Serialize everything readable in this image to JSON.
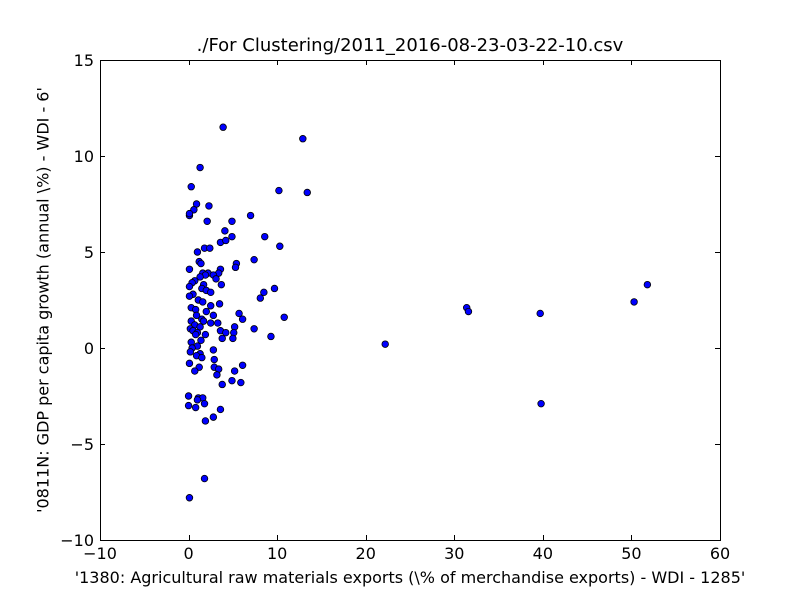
{
  "chart_data": {
    "type": "scatter",
    "title": "./For Clustering/2011_2016-08-23-03-22-10.csv",
    "xlabel": "'1380: Agricultural raw materials exports  (\\% of merchandise exports) - WDI - 1285'",
    "ylabel": "'0811N: GDP per capita growth  (annual \\%) - WDI - 6'",
    "xlim": [
      -10,
      60
    ],
    "ylim": [
      -10,
      15
    ],
    "xticks": [
      -10,
      0,
      10,
      20,
      30,
      40,
      50,
      60
    ],
    "yticks": [
      -10,
      -5,
      0,
      5,
      10,
      15
    ],
    "xtick_labels": [
      "−10",
      "0",
      "10",
      "20",
      "30",
      "40",
      "50",
      "60"
    ],
    "ytick_labels": [
      "−10",
      "−5",
      "0",
      "5",
      "10",
      "15"
    ],
    "grid": false,
    "marker_color": "#0000ff",
    "marker_edge": "#000000",
    "points": [
      [
        3.9,
        11.5
      ],
      [
        12.9,
        10.9
      ],
      [
        1.3,
        9.4
      ],
      [
        0.3,
        8.4
      ],
      [
        10.2,
        8.2
      ],
      [
        13.4,
        8.1
      ],
      [
        0.9,
        7.5
      ],
      [
        2.3,
        7.4
      ],
      [
        0.6,
        7.2
      ],
      [
        0.1,
        6.9
      ],
      [
        0.1,
        7.0
      ],
      [
        7.0,
        6.9
      ],
      [
        2.1,
        6.6
      ],
      [
        4.9,
        6.6
      ],
      [
        4.1,
        6.1
      ],
      [
        8.6,
        5.8
      ],
      [
        4.9,
        5.8
      ],
      [
        3.6,
        5.5
      ],
      [
        4.2,
        5.6
      ],
      [
        10.3,
        5.3
      ],
      [
        1.8,
        5.2
      ],
      [
        2.4,
        5.2
      ],
      [
        1.0,
        5.0
      ],
      [
        7.4,
        4.6
      ],
      [
        1.2,
        4.5
      ],
      [
        1.4,
        4.4
      ],
      [
        5.4,
        4.4
      ],
      [
        5.3,
        4.2
      ],
      [
        0.1,
        4.1
      ],
      [
        3.6,
        4.1
      ],
      [
        3.4,
        3.9
      ],
      [
        1.6,
        3.9
      ],
      [
        2.2,
        3.9
      ],
      [
        1.9,
        3.8
      ],
      [
        2.8,
        3.8
      ],
      [
        1.3,
        3.7
      ],
      [
        3.1,
        3.6
      ],
      [
        0.7,
        3.5
      ],
      [
        0.4,
        3.4
      ],
      [
        1.7,
        3.3
      ],
      [
        3.7,
        3.3
      ],
      [
        0.1,
        3.2
      ],
      [
        1.5,
        3.1
      ],
      [
        9.7,
        3.1
      ],
      [
        2.0,
        3.0
      ],
      [
        8.5,
        2.9
      ],
      [
        2.5,
        2.9
      ],
      [
        0.5,
        2.8
      ],
      [
        0.1,
        2.7
      ],
      [
        8.1,
        2.6
      ],
      [
        1.1,
        2.5
      ],
      [
        1.6,
        2.4
      ],
      [
        50.3,
        2.4
      ],
      [
        3.5,
        2.3
      ],
      [
        51.8,
        3.3
      ],
      [
        2.5,
        2.2
      ],
      [
        0.3,
        2.1
      ],
      [
        31.4,
        2.1
      ],
      [
        31.6,
        1.9
      ],
      [
        0.8,
        2.0
      ],
      [
        2.0,
        1.9
      ],
      [
        5.7,
        1.8
      ],
      [
        39.7,
        1.8
      ],
      [
        0.9,
        1.7
      ],
      [
        2.8,
        1.7
      ],
      [
        10.8,
        1.6
      ],
      [
        6.1,
        1.5
      ],
      [
        1.5,
        1.5
      ],
      [
        0.3,
        1.4
      ],
      [
        1.7,
        1.4
      ],
      [
        3.3,
        1.3
      ],
      [
        2.5,
        1.3
      ],
      [
        0.7,
        1.2
      ],
      [
        5.2,
        1.1
      ],
      [
        1.3,
        1.1
      ],
      [
        7.4,
        1.0
      ],
      [
        0.2,
        1.0
      ],
      [
        3.6,
        0.9
      ],
      [
        0.5,
        0.9
      ],
      [
        4.2,
        0.8
      ],
      [
        5.1,
        0.8
      ],
      [
        1.0,
        0.8
      ],
      [
        1.9,
        0.7
      ],
      [
        0.8,
        0.7
      ],
      [
        9.3,
        0.6
      ],
      [
        5.0,
        0.5
      ],
      [
        3.8,
        0.5
      ],
      [
        1.4,
        0.4
      ],
      [
        0.3,
        0.3
      ],
      [
        22.2,
        0.2
      ],
      [
        1.0,
        0.1
      ],
      [
        0.4,
        0.0
      ],
      [
        2.8,
        -0.1
      ],
      [
        0.2,
        -0.2
      ],
      [
        1.3,
        -0.3
      ],
      [
        0.9,
        -0.4
      ],
      [
        1.5,
        -0.5
      ],
      [
        2.9,
        -0.6
      ],
      [
        0.1,
        -0.8
      ],
      [
        6.1,
        -0.9
      ],
      [
        1.2,
        -1.0
      ],
      [
        2.9,
        -1.0
      ],
      [
        3.4,
        -1.1
      ],
      [
        0.7,
        -1.2
      ],
      [
        5.2,
        -1.2
      ],
      [
        3.2,
        -1.4
      ],
      [
        4.9,
        -1.7
      ],
      [
        5.9,
        -1.8
      ],
      [
        3.8,
        -1.9
      ],
      [
        0.0,
        -2.5
      ],
      [
        1.1,
        -2.6
      ],
      [
        1.6,
        -2.6
      ],
      [
        1.0,
        -2.7
      ],
      [
        0.0,
        -3.0
      ],
      [
        0.8,
        -3.1
      ],
      [
        39.8,
        -2.9
      ],
      [
        1.8,
        -2.9
      ],
      [
        3.6,
        -3.2
      ],
      [
        2.8,
        -3.6
      ],
      [
        1.9,
        -3.8
      ],
      [
        1.8,
        -6.8
      ],
      [
        0.1,
        -7.8
      ]
    ]
  }
}
